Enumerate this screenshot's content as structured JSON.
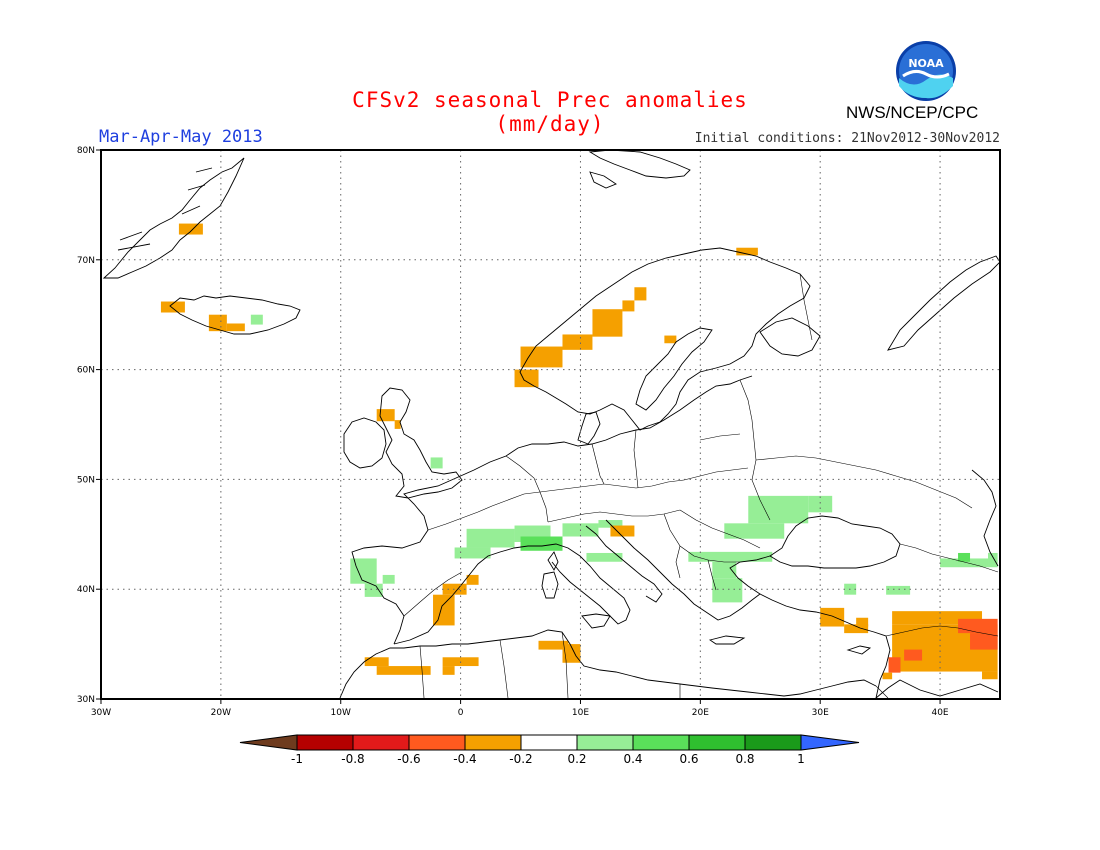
{
  "header": {
    "title": "CFSv2 seasonal Prec anomalies (mm/day)",
    "period": "Mar-Apr-May 2013",
    "initial_conditions": "Initial conditions: 21Nov2012-30Nov2012",
    "agency": "NWS/NCEP/CPC",
    "logo_text": "NOAA"
  },
  "axes": {
    "lon_labels": [
      "30W",
      "20W",
      "10W",
      "0",
      "10E",
      "20E",
      "30E",
      "40E"
    ],
    "lat_labels": [
      "80N",
      "70N",
      "60N",
      "50N",
      "40N",
      "30N"
    ],
    "lon_values": [
      -30,
      -20,
      -10,
      0,
      10,
      20,
      30,
      40
    ],
    "lat_values": [
      80,
      70,
      60,
      50,
      40,
      30
    ],
    "lon_range": [
      -30,
      45
    ],
    "lat_range": [
      30,
      80
    ],
    "grid": "dotted"
  },
  "colorbar": {
    "labels": [
      "-1",
      "-0.8",
      "-0.6",
      "-0.4",
      "-0.2",
      "0.2",
      "0.4",
      "0.6",
      "0.8",
      "1"
    ],
    "colors": [
      "#6e3b1e",
      "#b50000",
      "#e21a1a",
      "#ff5a1f",
      "#f5a000",
      "#ffffff",
      "#96ee96",
      "#5ae05a",
      "#2fbf2f",
      "#1a9a1a",
      "#3366ff"
    ]
  },
  "anomaly_regions": [
    {
      "lon": [
        -23.5,
        -21.5
      ],
      "lat": [
        72.3,
        73.3
      ],
      "value": -0.3
    },
    {
      "lon": [
        -25,
        -23
      ],
      "lat": [
        65.2,
        66.2
      ],
      "value": -0.3
    },
    {
      "lon": [
        -21,
        -19.5
      ],
      "lat": [
        63.5,
        65
      ],
      "value": -0.3
    },
    {
      "lon": [
        -19.5,
        -18
      ],
      "lat": [
        63.5,
        64.2
      ],
      "value": -0.3
    },
    {
      "lon": [
        -17.5,
        -16.5
      ],
      "lat": [
        64.1,
        65
      ],
      "value": 0.3
    },
    {
      "lon": [
        -7,
        -5.5
      ],
      "lat": [
        55.3,
        56.4
      ],
      "value": -0.3
    },
    {
      "lon": [
        -5.5,
        -5
      ],
      "lat": [
        54.6,
        55.4
      ],
      "value": -0.3
    },
    {
      "lon": [
        4.5,
        6.5
      ],
      "lat": [
        58.4,
        60
      ],
      "value": -0.3
    },
    {
      "lon": [
        5,
        8.5
      ],
      "lat": [
        60.2,
        62.1
      ],
      "value": -0.3
    },
    {
      "lon": [
        8.5,
        11
      ],
      "lat": [
        61.8,
        63.2
      ],
      "value": -0.3
    },
    {
      "lon": [
        11,
        13.5
      ],
      "lat": [
        63,
        65.5
      ],
      "value": -0.3
    },
    {
      "lon": [
        13.5,
        14.5
      ],
      "lat": [
        65.3,
        66.3
      ],
      "value": -0.3
    },
    {
      "lon": [
        14.5,
        15.5
      ],
      "lat": [
        66.3,
        67.5
      ],
      "value": -0.3
    },
    {
      "lon": [
        17,
        18
      ],
      "lat": [
        62.4,
        63.1
      ],
      "value": -0.3
    },
    {
      "lon": [
        23,
        24.8
      ],
      "lat": [
        70.4,
        71.1
      ],
      "value": -0.3
    },
    {
      "lon": -2,
      "lat": 51.5,
      "value": 0.3,
      "size": 1
    },
    {
      "lon": [
        0.5,
        4.5
      ],
      "lat": [
        43.8,
        45.5
      ],
      "value": 0.3
    },
    {
      "lon": [
        -0.5,
        2.5
      ],
      "lat": [
        42.8,
        43.8
      ],
      "value": 0.3
    },
    {
      "lon": [
        4.5,
        7.5
      ],
      "lat": [
        44.3,
        45.8
      ],
      "value": 0.3
    },
    {
      "lon": [
        5,
        8.5
      ],
      "lat": [
        43.5,
        44.8
      ],
      "value": 0.45
    },
    {
      "lon": [
        8.5,
        11.5
      ],
      "lat": [
        44.8,
        46
      ],
      "value": 0.3
    },
    {
      "lon": [
        11.5,
        13.5
      ],
      "lat": [
        45.6,
        46.3
      ],
      "value": 0.3
    },
    {
      "lon": [
        12.5,
        14.5
      ],
      "lat": [
        44.8,
        45.8
      ],
      "value": -0.3
    },
    {
      "lon": [
        10.5,
        13.5
      ],
      "lat": [
        42.5,
        43.3
      ],
      "value": 0.3
    },
    {
      "lon": [
        19,
        26
      ],
      "lat": [
        42.5,
        43.4
      ],
      "value": 0.3
    },
    {
      "lon": [
        22,
        27
      ],
      "lat": [
        44.6,
        46
      ],
      "value": 0.3
    },
    {
      "lon": [
        24,
        29
      ],
      "lat": [
        46,
        48.5
      ],
      "value": 0.3
    },
    {
      "lon": [
        29,
        31
      ],
      "lat": [
        47,
        48.5
      ],
      "value": 0.3
    },
    {
      "lon": [
        21,
        23
      ],
      "lat": [
        41,
        42.5
      ],
      "value": 0.3
    },
    {
      "lon": [
        21,
        23.5
      ],
      "lat": [
        38.8,
        41
      ],
      "value": 0.3
    },
    {
      "lon": [
        -9.2,
        -7
      ],
      "lat": [
        40.5,
        42.8
      ],
      "value": 0.3
    },
    {
      "lon": [
        -8,
        -6.5
      ],
      "lat": [
        39.3,
        40.5
      ],
      "value": 0.3
    },
    {
      "lon": [
        -6.5,
        -5.5
      ],
      "lat": [
        40.5,
        41.3
      ],
      "value": 0.3
    },
    {
      "lon": [
        32,
        33
      ],
      "lat": [
        39.5,
        40.5
      ],
      "value": 0.3
    },
    {
      "lon": [
        35.5,
        37.5
      ],
      "lat": [
        39.5,
        40.3
      ],
      "value": 0.3
    },
    {
      "lon": [
        40,
        44
      ],
      "lat": [
        42,
        42.8
      ],
      "value": 0.3
    },
    {
      "lon": [
        41.5,
        42.5
      ],
      "lat": [
        42.5,
        43.3
      ],
      "value": 0.45
    },
    {
      "lon": [
        44,
        44.8
      ],
      "lat": [
        42,
        43.3
      ],
      "value": 0.3
    },
    {
      "lon": [
        -1.5,
        0.5
      ],
      "lat": [
        39.5,
        40.5
      ],
      "value": -0.3
    },
    {
      "lon": [
        -2.3,
        -0.5
      ],
      "lat": [
        36.7,
        39.5
      ],
      "value": -0.3
    },
    {
      "lon": [
        0.5,
        1.5
      ],
      "lat": [
        40.4,
        41.3
      ],
      "value": -0.3
    },
    {
      "lon": [
        6.5,
        9
      ],
      "lat": [
        34.5,
        35.3
      ],
      "value": -0.3
    },
    {
      "lon": [
        8.5,
        10
      ],
      "lat": [
        33.3,
        35
      ],
      "value": -0.3
    },
    {
      "lon": [
        -8,
        -6
      ],
      "lat": [
        33,
        33.8
      ],
      "value": -0.3
    },
    {
      "lon": [
        -7,
        -2.5
      ],
      "lat": [
        32.2,
        33
      ],
      "value": -0.3
    },
    {
      "lon": [
        -1.5,
        1.5
      ],
      "lat": [
        33,
        33.8
      ],
      "value": -0.3
    },
    {
      "lon": [
        -1.5,
        -0.5
      ],
      "lat": [
        32.2,
        33
      ],
      "value": -0.3
    },
    {
      "lon": [
        30,
        32
      ],
      "lat": [
        36.6,
        38.3
      ],
      "value": -0.3
    },
    {
      "lon": [
        32,
        34
      ],
      "lat": [
        36,
        36.8
      ],
      "value": -0.3
    },
    {
      "lon": [
        33,
        34
      ],
      "lat": [
        36.6,
        37.4
      ],
      "value": -0.3
    },
    {
      "lon": [
        36,
        43.5
      ],
      "lat": [
        36.8,
        38
      ],
      "value": -0.3
    },
    {
      "lon": [
        36,
        44.8
      ],
      "lat": [
        32.5,
        36.8
      ],
      "value": -0.3
    },
    {
      "lon": [
        43.5,
        44.8
      ],
      "lat": [
        31.8,
        32.5
      ],
      "value": -0.3
    },
    {
      "lon": [
        41.5,
        44.8
      ],
      "lat": [
        36,
        37.3
      ],
      "value": -0.5
    },
    {
      "lon": [
        42.5,
        44.8
      ],
      "lat": [
        34.5,
        36
      ],
      "value": -0.5
    },
    {
      "lon": [
        37,
        38.5
      ],
      "lat": [
        33.5,
        34.5
      ],
      "value": -0.5
    },
    {
      "lon": [
        35.7,
        36.7
      ],
      "lat": [
        32.4,
        33.8
      ],
      "value": -0.5
    },
    {
      "lon": [
        35.2,
        36
      ],
      "lat": [
        31.8,
        32.4
      ],
      "value": -0.3
    }
  ]
}
